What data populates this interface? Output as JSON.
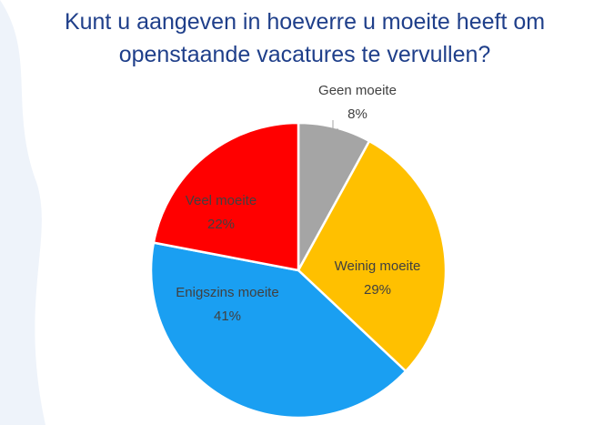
{
  "chart_data": {
    "type": "pie",
    "title": "Kunt u aangeven in hoeverre u moeite heeft om openstaande vacatures te vervullen?",
    "categories": [
      "Geen moeite",
      "Weinig moeite",
      "Enigszins moeite",
      "Veel moeite"
    ],
    "values": [
      8,
      29,
      41,
      22
    ],
    "value_labels": [
      "8%",
      "29%",
      "41%",
      "22%"
    ],
    "colors": [
      "#a5a5a5",
      "#ffc000",
      "#1a9ff2",
      "#ff0000"
    ]
  }
}
